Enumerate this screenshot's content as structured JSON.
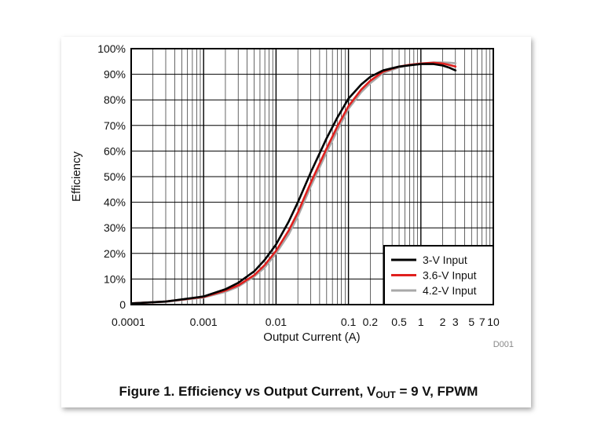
{
  "caption": {
    "prefix": "Figure 1. Efficiency vs Output Current, V",
    "sub": "OUT",
    "suffix": " = 9 V, FPWM"
  },
  "figure_code": "D001",
  "chart_data": {
    "type": "line",
    "xlabel": "Output Current (A)",
    "ylabel": "Efficiency",
    "x_scale": "log",
    "xlim": [
      0.0001,
      10
    ],
    "ylim": [
      0,
      100
    ],
    "grid": true,
    "legend_position": "bottom-right",
    "x_ticks": [
      {
        "value": 0.0001,
        "label": "0.0001"
      },
      {
        "value": 0.001,
        "label": "0.001"
      },
      {
        "value": 0.01,
        "label": "0.01"
      },
      {
        "value": 0.1,
        "label": "0.1"
      },
      {
        "value": 0.2,
        "label": "0.2"
      },
      {
        "value": 0.5,
        "label": "0.5"
      },
      {
        "value": 1,
        "label": "1"
      },
      {
        "value": 2,
        "label": "2"
      },
      {
        "value": 3,
        "label": "3"
      },
      {
        "value": 5,
        "label": "5"
      },
      {
        "value": 7,
        "label": "7"
      },
      {
        "value": 10,
        "label": "10"
      }
    ],
    "y_ticks": [
      {
        "value": 0,
        "label": "0"
      },
      {
        "value": 10,
        "label": "10%"
      },
      {
        "value": 20,
        "label": "20%"
      },
      {
        "value": 30,
        "label": "30%"
      },
      {
        "value": 40,
        "label": "40%"
      },
      {
        "value": 50,
        "label": "50%"
      },
      {
        "value": 60,
        "label": "60%"
      },
      {
        "value": 70,
        "label": "70%"
      },
      {
        "value": 80,
        "label": "80%"
      },
      {
        "value": 90,
        "label": "90%"
      },
      {
        "value": 100,
        "label": "100%"
      }
    ],
    "series": [
      {
        "name": "3-V Input",
        "color": "#000000",
        "x": [
          0.0001,
          0.0003,
          0.001,
          0.002,
          0.003,
          0.005,
          0.007,
          0.01,
          0.015,
          0.02,
          0.03,
          0.05,
          0.07,
          0.1,
          0.15,
          0.2,
          0.3,
          0.5,
          0.7,
          1,
          1.5,
          2,
          2.5,
          3
        ],
        "y": [
          0.5,
          1.2,
          3.2,
          6,
          8.5,
          13,
          17.5,
          23.5,
          32.5,
          40,
          51.5,
          65,
          73,
          80.5,
          86,
          89,
          91.5,
          93,
          93.5,
          94,
          94,
          93.4,
          92.5,
          91.5
        ]
      },
      {
        "name": "3.6-V Input",
        "color": "#e0201e",
        "x": [
          0.0001,
          0.0003,
          0.001,
          0.002,
          0.003,
          0.005,
          0.007,
          0.01,
          0.015,
          0.02,
          0.03,
          0.05,
          0.07,
          0.1,
          0.15,
          0.2,
          0.3,
          0.5,
          0.7,
          1,
          1.5,
          2,
          2.5,
          3
        ],
        "y": [
          0.5,
          1.2,
          3,
          5.5,
          7.5,
          11.5,
          15.5,
          21,
          29,
          36,
          47.5,
          61,
          69.5,
          77.5,
          84,
          87.5,
          91,
          93,
          93.7,
          94.2,
          94.5,
          94.2,
          93.6,
          93
        ]
      },
      {
        "name": "4.2-V Input",
        "color": "#a8a8a8",
        "x": [
          0.0001,
          0.0003,
          0.001,
          0.002,
          0.003,
          0.005,
          0.007,
          0.01,
          0.015,
          0.02,
          0.03,
          0.05,
          0.07,
          0.1,
          0.15,
          0.2,
          0.3,
          0.5,
          0.7,
          1,
          1.5,
          2,
          2.5,
          3
        ],
        "y": [
          0.5,
          1.1,
          2.8,
          5,
          7,
          11,
          14.5,
          20,
          27.5,
          34.5,
          46,
          59.5,
          68,
          76.5,
          83,
          86.5,
          90.5,
          92.7,
          93.6,
          94.2,
          94.6,
          94.6,
          94.5,
          94.3
        ]
      }
    ]
  }
}
